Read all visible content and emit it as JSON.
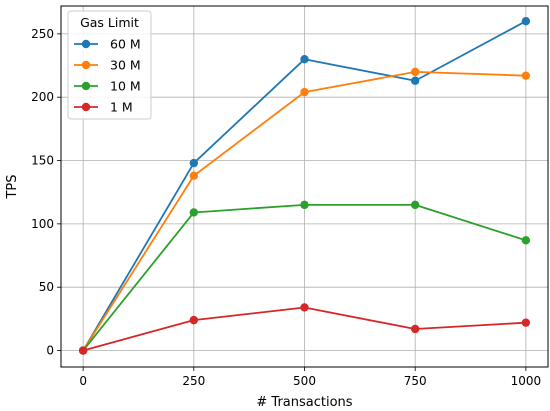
{
  "chart_data": {
    "type": "line",
    "title": "",
    "xlabel": "# Transactions",
    "ylabel": "TPS",
    "x": [
      0,
      250,
      500,
      750,
      1000
    ],
    "x_ticks": [
      0,
      250,
      500,
      750,
      1000
    ],
    "y_ticks": [
      0,
      50,
      100,
      150,
      200,
      250
    ],
    "xlim": [
      -50,
      1050
    ],
    "ylim": [
      -13,
      272
    ],
    "grid": true,
    "legend": {
      "title": "Gas Limit",
      "placement": "top-left"
    },
    "series": [
      {
        "name": "60 M",
        "color": "#1f77b4",
        "values": [
          0,
          148,
          230,
          213,
          260
        ]
      },
      {
        "name": "30 M",
        "color": "#ff7f0e",
        "values": [
          0,
          138,
          204,
          220,
          217
        ]
      },
      {
        "name": "10 M",
        "color": "#2ca02c",
        "values": [
          0,
          109,
          115,
          115,
          87
        ]
      },
      {
        "name": "1 M",
        "color": "#d62728",
        "values": [
          0,
          24,
          34,
          17,
          22
        ]
      }
    ]
  }
}
